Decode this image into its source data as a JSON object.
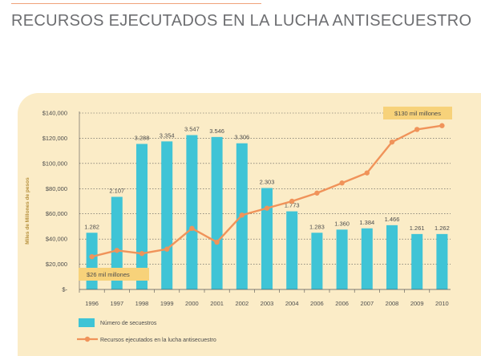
{
  "header": {
    "title": "RECURSOS EJECUTADOS EN LA LUCHA ANTISECUESTRO"
  },
  "chart_data": {
    "type": "bar",
    "ylabel": "Miles de Millones de pesos",
    "ylim": [
      0,
      140000
    ],
    "yticks": [
      {
        "value": 0,
        "label": "$-"
      },
      {
        "value": 20000,
        "label": "$20,000"
      },
      {
        "value": 40000,
        "label": "$40,000"
      },
      {
        "value": 60000,
        "label": "$60,000"
      },
      {
        "value": 80000,
        "label": "$80,000"
      },
      {
        "value": 100000,
        "label": "$100,000"
      },
      {
        "value": 120000,
        "label": "$120,000"
      },
      {
        "value": 140000,
        "label": "$140,000"
      }
    ],
    "categories": [
      "1996",
      "1997",
      "1998",
      "1999",
      "2000",
      "2001",
      "2002",
      "2003",
      "2004",
      "2006",
      "2006",
      "2007",
      "2008",
      "2009",
      "2010"
    ],
    "grid": true,
    "legend": "bottom-left",
    "series": [
      {
        "name": "Número de secuestros",
        "kind": "bar",
        "color": "#3fc4d6",
        "values": [
          45000,
          73500,
          115500,
          117500,
          122500,
          121000,
          116000,
          80500,
          62000,
          45000,
          47500,
          48500,
          51000,
          44000,
          44000
        ],
        "labels": [
          "1.282",
          "2.107",
          "3.288",
          "3.354",
          "3.547",
          "3.546",
          "3.306",
          "2.303",
          "1.773",
          "1.283",
          "1.360",
          "1.384",
          "1.466",
          "1.261",
          "1.262"
        ]
      },
      {
        "name": "Recursos ejecutados en la lucha antisecuestro",
        "kind": "line",
        "color": "#f0935a",
        "values": [
          26000,
          31000,
          28500,
          32000,
          48500,
          37500,
          59000,
          64500,
          70000,
          76500,
          84500,
          92500,
          117000,
          127000,
          130000
        ]
      }
    ],
    "annotations": [
      {
        "text": "$130 mil millones",
        "color": "#f7d27a",
        "anchor": "end"
      },
      {
        "text": "$26 mil millones",
        "color": "#f7d27a",
        "anchor": "start"
      }
    ]
  }
}
